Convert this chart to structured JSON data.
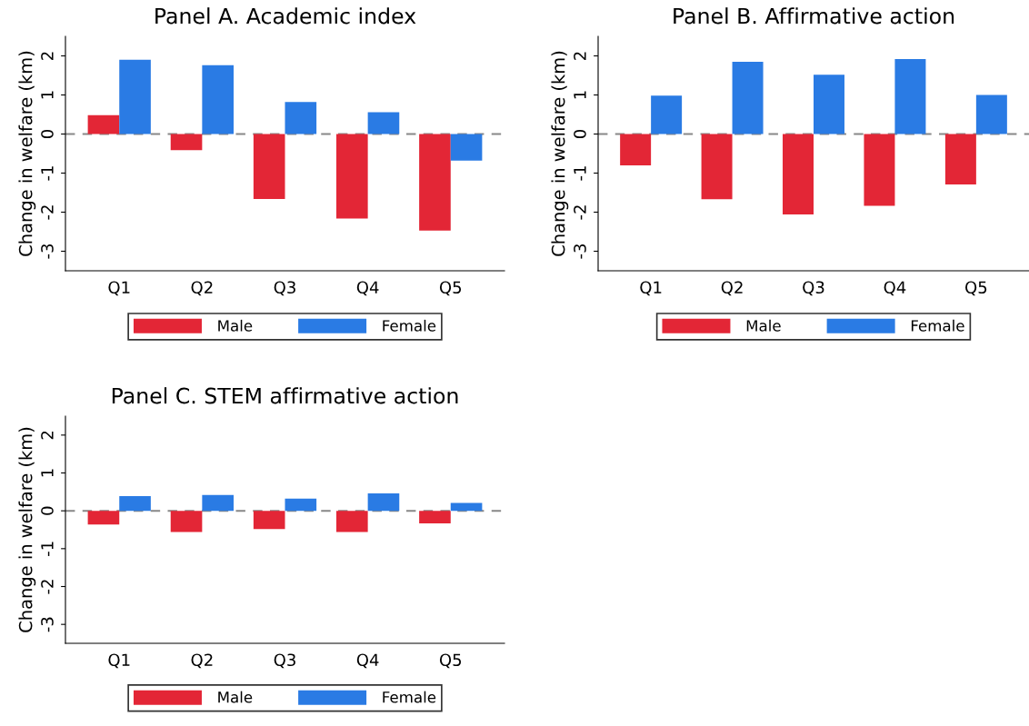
{
  "chart_data": [
    {
      "type": "bar",
      "title": "Panel A. Academic index",
      "ylabel": "Change in welfare (km)",
      "categories": [
        "Q1",
        "Q2",
        "Q3",
        "Q4",
        "Q5"
      ],
      "series": [
        {
          "name": "Male",
          "color": "#e32636",
          "values": [
            0.48,
            -0.41,
            -1.66,
            -2.16,
            -2.47
          ]
        },
        {
          "name": "Female",
          "color": "#2a7be4",
          "values": [
            1.9,
            1.76,
            0.82,
            0.56,
            -0.68
          ]
        }
      ],
      "ylim": [
        -3.5,
        2.5
      ],
      "yticks": [
        -3,
        -2,
        -1,
        0,
        1,
        2
      ],
      "ref_lines": [
        {
          "axis": "y",
          "value": 0,
          "color": "#888888",
          "line_style": "dashed"
        }
      ],
      "legend": "bottom",
      "grid": false
    },
    {
      "type": "bar",
      "title": "Panel B. Affirmative action",
      "ylabel": "Change in welfare (km)",
      "categories": [
        "Q1",
        "Q2",
        "Q3",
        "Q4",
        "Q5"
      ],
      "series": [
        {
          "name": "Male",
          "color": "#e32636",
          "values": [
            -0.8,
            -1.67,
            -2.06,
            -1.84,
            -1.29
          ]
        },
        {
          "name": "Female",
          "color": "#2a7be4",
          "values": [
            0.98,
            1.85,
            1.52,
            1.92,
            1.0
          ]
        }
      ],
      "ylim": [
        -3.5,
        2.5
      ],
      "yticks": [
        -3,
        -2,
        -1,
        0,
        1,
        2
      ],
      "ref_lines": [
        {
          "axis": "y",
          "value": 0,
          "color": "#888888",
          "line_style": "dashed"
        }
      ],
      "legend": "bottom",
      "grid": false
    },
    {
      "type": "bar",
      "title": "Panel C. STEM affirmative action",
      "ylabel": "Change in welfare (km)",
      "categories": [
        "Q1",
        "Q2",
        "Q3",
        "Q4",
        "Q5"
      ],
      "series": [
        {
          "name": "Male",
          "color": "#e32636",
          "values": [
            -0.36,
            -0.56,
            -0.48,
            -0.56,
            -0.33
          ]
        },
        {
          "name": "Female",
          "color": "#2a7be4",
          "values": [
            0.39,
            0.42,
            0.32,
            0.46,
            0.21
          ]
        }
      ],
      "ylim": [
        -3.5,
        2.5
      ],
      "yticks": [
        -3,
        -2,
        -1,
        0,
        1,
        2
      ],
      "ref_lines": [
        {
          "axis": "y",
          "value": 0,
          "color": "#888888",
          "line_style": "dashed"
        }
      ],
      "legend": "bottom",
      "grid": false
    }
  ]
}
